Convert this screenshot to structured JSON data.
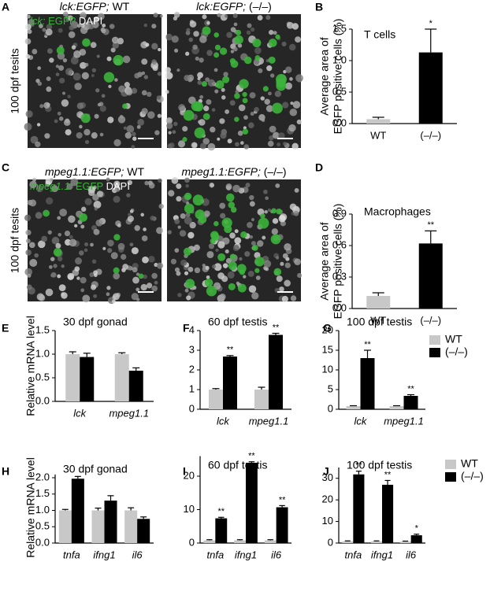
{
  "panel_letters": [
    "A",
    "B",
    "C",
    "D",
    "E",
    "F",
    "G",
    "H",
    "I",
    "J"
  ],
  "images": [
    {
      "side_label": "100 dpf tesits",
      "overlay": {
        "gene": "lck:",
        "marker": "EGFP",
        "stain": "DAPI"
      },
      "panels": [
        {
          "gene": "lck:EGFP;",
          "genotype": "WT"
        },
        {
          "gene": "lck:EGFP;",
          "genotype": "(–/–)"
        }
      ]
    },
    {
      "side_label": "100 dpf tesits",
      "overlay": {
        "gene": "mpeg1.1:",
        "marker": "EGFP",
        "stain": "DAPI"
      },
      "panels": [
        {
          "gene": "mpeg1.1:EGFP;",
          "genotype": "WT"
        },
        {
          "gene": "mpeg1.1:EGFP;",
          "genotype": "(–/–)"
        }
      ]
    }
  ],
  "chart_data": [
    {
      "type": "bar",
      "annotation": "T cells",
      "ylabel": [
        "Average area of",
        "EGFP positive cells (%)"
      ],
      "categories": [
        "WT",
        "(–/–)"
      ],
      "values": [
        0.07,
        1.13
      ],
      "errors": [
        0.03,
        0.37
      ],
      "colors": [
        "#c8c8c8",
        "#000000"
      ],
      "significance": [
        null,
        "*"
      ],
      "ylim": [
        0,
        1.5
      ],
      "yticks": [
        {
          "value": 0,
          "label": "0.0"
        },
        {
          "value": 0.5,
          "label": "0.5"
        },
        {
          "value": 1,
          "label": "1.0"
        },
        {
          "value": 1.5,
          "label": "1.5"
        }
      ]
    },
    {
      "type": "bar",
      "annotation": "Macrophages",
      "ylabel": [
        "Average area of",
        "EGFP positive cells (%)"
      ],
      "categories": [
        "WT",
        "(–/–)"
      ],
      "values": [
        0.12,
        0.62
      ],
      "errors": [
        0.03,
        0.12
      ],
      "colors": [
        "#c8c8c8",
        "#000000"
      ],
      "significance": [
        null,
        "**"
      ],
      "ylim": [
        0,
        0.9
      ],
      "yticks": [
        {
          "value": 0,
          "label": "0.0"
        },
        0.3,
        0.6,
        0.9
      ]
    },
    {
      "type": "grouped-bar",
      "annotation": "30 dpf gonad",
      "ylabel": [
        "Relative mRNA level"
      ],
      "categories": [
        "lck",
        "mpeg1.1"
      ],
      "series": [
        {
          "name": "WT",
          "color": "#c8c8c8",
          "values": [
            1.0,
            1.0
          ],
          "errors": [
            0.05,
            0.03
          ],
          "significance": [
            null,
            null
          ]
        },
        {
          "name": "(–/–)",
          "color": "#000000",
          "values": [
            0.94,
            0.65
          ],
          "errors": [
            0.08,
            0.06
          ],
          "significance": [
            null,
            null
          ]
        }
      ],
      "ylim": [
        0,
        1.5
      ],
      "yticks": [
        {
          "value": 0,
          "label": "0.0"
        },
        0.5,
        {
          "value": 1,
          "label": "1.0"
        },
        1.5
      ]
    },
    {
      "type": "grouped-bar",
      "annotation": "60 dpf testis",
      "categories": [
        "lck",
        "mpeg1.1"
      ],
      "series": [
        {
          "name": "WT",
          "color": "#c8c8c8",
          "values": [
            1.0,
            1.0
          ],
          "errors": [
            0.05,
            0.12
          ],
          "significance": [
            null,
            null
          ]
        },
        {
          "name": "(–/–)",
          "color": "#000000",
          "values": [
            2.68,
            3.78
          ],
          "errors": [
            0.05,
            0.08
          ],
          "significance": [
            "**",
            "**"
          ]
        }
      ],
      "ylim": [
        0,
        4
      ],
      "yticks": [
        0,
        1,
        2,
        3,
        4
      ]
    },
    {
      "type": "grouped-bar",
      "annotation": "100 dpf testis",
      "categories": [
        "lck",
        "mpeg1.1"
      ],
      "series": [
        {
          "name": "WT",
          "color": "#c8c8c8",
          "values": [
            0.8,
            0.8
          ],
          "errors": [
            0.1,
            0.1
          ],
          "significance": [
            null,
            null
          ]
        },
        {
          "name": "(–/–)",
          "color": "#000000",
          "values": [
            13,
            3.4
          ],
          "errors": [
            2,
            0.3
          ],
          "significance": [
            "**",
            "**"
          ]
        }
      ],
      "ylim": [
        0,
        20
      ],
      "yticks": [
        0,
        5,
        10,
        15,
        20
      ],
      "legend": "right"
    },
    {
      "type": "grouped-bar",
      "annotation": "30 dpf gonad",
      "ylabel": [
        "Relative mRNA level"
      ],
      "categories": [
        "tnfa",
        "ifng1",
        "il6"
      ],
      "series": [
        {
          "name": "WT",
          "color": "#c8c8c8",
          "values": [
            1.0,
            1.0,
            1.0
          ],
          "errors": [
            0.03,
            0.07,
            0.08
          ],
          "significance": [
            null,
            null,
            null
          ]
        },
        {
          "name": "(–/–)",
          "color": "#000000",
          "values": [
            1.97,
            1.3,
            0.74
          ],
          "errors": [
            0.07,
            0.15,
            0.06
          ],
          "significance": [
            null,
            null,
            null
          ]
        }
      ],
      "ylim": [
        0,
        2.1
      ],
      "yticks": [
        {
          "value": 0,
          "label": "0.0"
        },
        0.5,
        {
          "value": 1,
          "label": "1.0"
        },
        1.5,
        {
          "value": 2,
          "label": "2.0"
        }
      ]
    },
    {
      "type": "grouped-bar",
      "annotation": "60 dpf testis",
      "categories": [
        "tnfa",
        "ifng1",
        "il6"
      ],
      "series": [
        {
          "name": "WT",
          "color": "#c8c8c8",
          "values": [
            0.8,
            0.8,
            0.8
          ],
          "errors": [
            0.2,
            0.2,
            0.2
          ],
          "significance": [
            null,
            null,
            null
          ]
        },
        {
          "name": "(–/–)",
          "color": "#000000",
          "values": [
            7.4,
            24,
            10.7
          ],
          "errors": [
            0.3,
            0.3,
            0.5
          ],
          "significance": [
            "**",
            "**",
            "**"
          ]
        }
      ],
      "ylim": [
        0,
        26
      ],
      "yticks": [
        0,
        10,
        20
      ]
    },
    {
      "type": "grouped-bar",
      "annotation": "100 dpf testis",
      "categories": [
        "tnfa",
        "ifng1",
        "il6"
      ],
      "series": [
        {
          "name": "WT",
          "color": "#c8c8c8",
          "values": [
            0.8,
            0.8,
            0.7
          ],
          "errors": [
            0.2,
            0.2,
            0.2
          ],
          "significance": [
            null,
            null,
            null
          ]
        },
        {
          "name": "(–/–)",
          "color": "#000000",
          "values": [
            31.8,
            27,
            3.6
          ],
          "errors": [
            1.5,
            2,
            0.5
          ],
          "significance": [
            "**",
            "**",
            "*"
          ]
        }
      ],
      "ylim": [
        0,
        35
      ],
      "yticks": [
        0,
        10,
        20,
        30
      ],
      "legend": "right"
    }
  ]
}
